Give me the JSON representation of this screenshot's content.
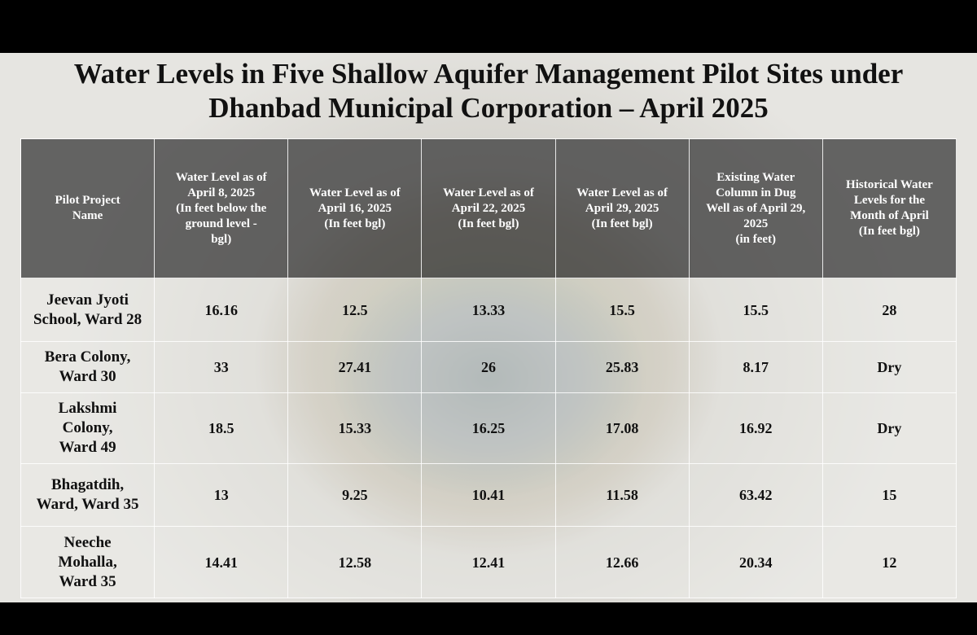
{
  "header": {
    "title": "Water Levels in Five Shallow Aquifer Management Pilot Sites under\nDhanbad Municipal Corporation – April 2025"
  },
  "table": {
    "columns": [
      "Pilot Project\nName",
      "Water Level as of\nApril 8, 2025\n(In feet below the\nground level -\nbgl)",
      "Water Level as of\nApril 16, 2025\n(In feet bgl)",
      "Water Level as of\nApril 22, 2025\n(In feet bgl)",
      "Water Level as of\nApril 29, 2025\n(In feet bgl)",
      "Existing Water\nColumn in Dug\nWell as of April 29,\n2025\n(in feet)",
      "Historical Water\nLevels for the\nMonth of April\n(In feet bgl)"
    ],
    "rows": [
      [
        "Jeevan Jyoti\nSchool, Ward 28",
        "16.16",
        "12.5",
        "13.33",
        "15.5",
        "15.5",
        "28"
      ],
      [
        "Bera Colony,\nWard 30",
        "33",
        "27.41",
        "26",
        "25.83",
        "8.17",
        "Dry"
      ],
      [
        "Lakshmi\nColony,\nWard 49",
        "18.5",
        "15.33",
        "16.25",
        "17.08",
        "16.92",
        "Dry"
      ],
      [
        "Bhagatdih,\nWard, Ward 35",
        "13",
        "9.25",
        "10.41",
        "11.58",
        "63.42",
        "15"
      ],
      [
        "Neeche\nMohalla,\nWard 35",
        "14.41",
        "12.58",
        "12.41",
        "12.66",
        "20.34",
        "12"
      ]
    ]
  }
}
